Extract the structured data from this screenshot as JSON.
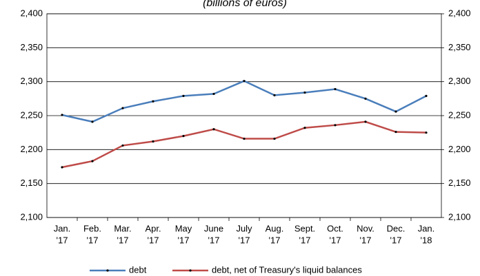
{
  "chart_data": {
    "type": "line",
    "title": "(billions of euros)",
    "categories": [
      [
        "Jan.",
        "'17"
      ],
      [
        "Feb.",
        "'17"
      ],
      [
        "Mar.",
        "'17"
      ],
      [
        "Apr.",
        "'17"
      ],
      [
        "May",
        "'17"
      ],
      [
        "June",
        "'17"
      ],
      [
        "July",
        "'17"
      ],
      [
        "Aug.",
        "'17"
      ],
      [
        "Sept.",
        "'17"
      ],
      [
        "Oct.",
        "'17"
      ],
      [
        "Nov.",
        "'17"
      ],
      [
        "Dec.",
        "'17"
      ],
      [
        "Jan.",
        "'18"
      ]
    ],
    "series": [
      {
        "name": "debt",
        "color": "#4a7ebb",
        "values": [
          2251,
          2241,
          2261,
          2271,
          2279,
          2282,
          2301,
          2280,
          2284,
          2289,
          2275,
          2256,
          2279
        ]
      },
      {
        "name": "debt, net of Treasury's liquid balances",
        "color": "#be4b48",
        "values": [
          2174,
          2183,
          2206,
          2212,
          2220,
          2230,
          2216,
          2216,
          2232,
          2236,
          2241,
          2226,
          2225
        ]
      }
    ],
    "ylim": [
      2100,
      2400
    ],
    "yticks": [
      {
        "value": 2100,
        "label": "2,100"
      },
      {
        "value": 2150,
        "label": "2,150"
      },
      {
        "value": 2200,
        "label": "2,200"
      },
      {
        "value": 2250,
        "label": "2,250"
      },
      {
        "value": 2300,
        "label": "2,300"
      },
      {
        "value": 2350,
        "label": "2,350"
      },
      {
        "value": 2400,
        "label": "2,400"
      }
    ],
    "y2lim": [
      2100,
      2400
    ],
    "y2ticks": [
      {
        "value": 2100,
        "label": "2,100"
      },
      {
        "value": 2150,
        "label": "2,150"
      },
      {
        "value": 2200,
        "label": "2,200"
      },
      {
        "value": 2250,
        "label": "2,250"
      },
      {
        "value": 2300,
        "label": "2,300"
      },
      {
        "value": 2350,
        "label": "2,350"
      },
      {
        "value": 2400,
        "label": "2,400"
      }
    ],
    "grid": true,
    "legend": "bottom"
  }
}
